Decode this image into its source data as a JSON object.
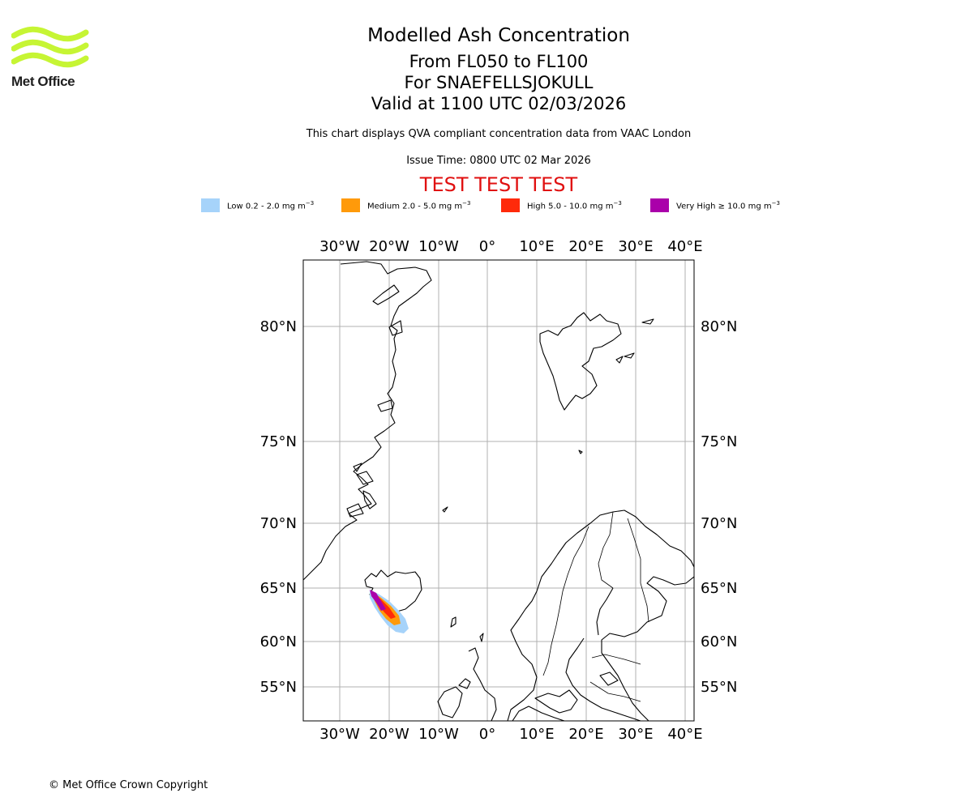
{
  "logo": {
    "text": "Met Office",
    "color": "#c6f534",
    "icon": "met-office-waves-icon"
  },
  "header": {
    "title": "Modelled Ash Concentration",
    "level_range": "From FL050 to FL100",
    "volcano": "For SNAEFELLSJOKULL",
    "valid_time": "Valid at 1100 UTC 02/03/2026",
    "description": "This chart displays QVA compliant concentration data from VAAC London",
    "issue_time": "Issue Time: 0800 UTC 02 Mar 2026",
    "test_banner": "TEST TEST TEST"
  },
  "legend": [
    {
      "label": "Low 0.2 - 2.0 mg m",
      "exponent": "−3",
      "color": "#a6d3fa"
    },
    {
      "label": "Medium 2.0 - 5.0 mg m",
      "exponent": "−3",
      "color": "#ff9a0a"
    },
    {
      "label": "High 5.0 - 10.0 mg m",
      "exponent": "−3",
      "color": "#ff2a0a"
    },
    {
      "label": "Very High ≥ 10.0 mg m",
      "exponent": "−3",
      "color": "#aa00aa"
    }
  ],
  "map": {
    "longitude_labels": [
      "30°W",
      "20°W",
      "10°W",
      "0°",
      "10°E",
      "20°E",
      "30°E",
      "40°E"
    ],
    "latitude_labels": [
      "80°N",
      "75°N",
      "70°N",
      "65°N",
      "60°N",
      "55°N"
    ]
  },
  "footer": {
    "copyright": "© Met Office Crown Copyright"
  }
}
